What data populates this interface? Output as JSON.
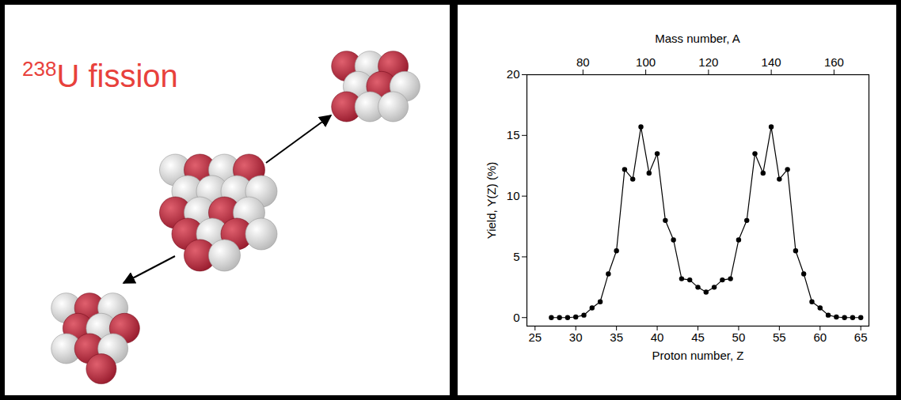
{
  "diagram": {
    "title_superscript": "238",
    "title": "U fission"
  },
  "chart_data": {
    "type": "line",
    "marker": "circle",
    "line_style": "solid",
    "color": "#000000",
    "grid": false,
    "x": [
      27,
      28,
      29,
      30,
      31,
      32,
      33,
      34,
      35,
      36,
      37,
      38,
      39,
      40,
      41,
      42,
      43,
      44,
      45,
      46,
      47,
      48,
      49,
      50,
      51,
      52,
      53,
      54,
      55,
      56,
      57,
      58,
      59,
      60,
      61,
      62,
      63,
      64,
      65
    ],
    "values": [
      0,
      0,
      0,
      0.05,
      0.2,
      0.8,
      1.3,
      3.6,
      5.5,
      12.2,
      11.4,
      15.7,
      11.9,
      13.5,
      8.0,
      6.4,
      3.2,
      3.1,
      2.5,
      2.1,
      2.5,
      3.1,
      3.2,
      6.4,
      8.0,
      13.5,
      11.9,
      15.7,
      11.4,
      12.2,
      5.5,
      3.6,
      1.3,
      0.8,
      0.2,
      0.05,
      0,
      0,
      0
    ],
    "xlabel": "Proton number, Z",
    "ylabel": "Yield, Y(Z) (%)",
    "xlim": [
      24,
      66
    ],
    "xticks": [
      25,
      30,
      35,
      40,
      45,
      50,
      55,
      60,
      65
    ],
    "ylim": [
      -0.7,
      20
    ],
    "yticks": [
      0,
      5,
      10,
      15,
      20
    ],
    "x2label": "Mass number, A",
    "x2lim": [
      62,
      171
    ],
    "x2ticks": [
      80,
      100,
      120,
      140,
      160
    ]
  }
}
